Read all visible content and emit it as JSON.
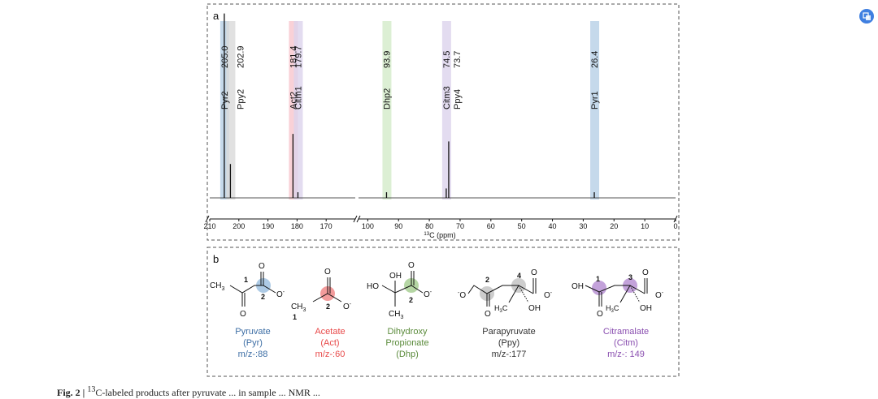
{
  "chart_data": {
    "type": "line",
    "panel_a_label": "a",
    "panel_b_label": "b",
    "xlabel_sup": "13",
    "xlabel": "C (ppm)",
    "x_segments": [
      {
        "xlim": [
          210,
          160
        ],
        "ticks": [
          210,
          200,
          190,
          180,
          170
        ]
      },
      {
        "xlim": [
          103,
          0
        ],
        "ticks": [
          100,
          90,
          80,
          70,
          60,
          50,
          40,
          30,
          20,
          10,
          0
        ]
      }
    ],
    "highlight_colors": {
      "Pyr": "#b7d0e6",
      "Ppy": "#d9d9d9",
      "Act": "#f8c6cd",
      "Citm": "#dcd3ec",
      "Dhp": "#d3ebc9"
    },
    "peaks": [
      {
        "label": "Pyr2",
        "ppm": 205.0,
        "value_label": "205.0",
        "height": 0.98,
        "band": "Pyr"
      },
      {
        "label": "Ppy2",
        "ppm": 202.9,
        "value_label": "202.9",
        "height": 0.18,
        "band": "Ppy"
      },
      {
        "label": "Act2",
        "ppm": 181.4,
        "value_label": "181.4",
        "height": 0.34,
        "band": "Act"
      },
      {
        "label": "Citm1",
        "ppm": 179.7,
        "value_label": "179.7",
        "height": 0.03,
        "band": "Citm"
      },
      {
        "label": "Dhp2",
        "ppm": 93.9,
        "value_label": "93.9",
        "height": 0.03,
        "band": "Dhp"
      },
      {
        "label": "Citm3",
        "ppm": 74.5,
        "value_label": "74.5",
        "height": 0.05,
        "band": "Citm"
      },
      {
        "label": "Ppy4",
        "ppm": 73.7,
        "value_label": "73.7",
        "height": 0.3,
        "band": "Citm"
      },
      {
        "label": "Pyr1",
        "ppm": 26.4,
        "value_label": "26.4",
        "height": 0.03,
        "band": "Pyr"
      }
    ]
  },
  "structures": {
    "pyruvate": {
      "ch3": "CH",
      "ch3_sub": "3",
      "o_top": "O",
      "o_bottom": "O",
      "o_minus": "O",
      "c1": "1",
      "c2": "2",
      "name": "Pyruvate",
      "abbr": "(Pyr)",
      "mz": "m/z-:88",
      "color": "#3d6ea5"
    },
    "acetate": {
      "ch3": "CH",
      "ch3_sub": "3",
      "o_top": "O",
      "o_minus": "O",
      "c1": "1",
      "c2": "2",
      "name": "Acetate",
      "abbr": "(Act)",
      "mz": "m/z-:60",
      "color": "#e84a4a"
    },
    "dhp": {
      "ho": "HO",
      "oh": "OH",
      "o_top": "O",
      "o_minus": "O",
      "ch3": "CH",
      "ch3_sub": "3",
      "c2": "2",
      "name": "Dihydroxy",
      "name2": "Propionate",
      "abbr": "(Dhp)",
      "color": "#5a8a3a"
    },
    "ppy": {
      "o_left": "O",
      "o_bottom": "O",
      "o_top": "O",
      "o_minus": "O",
      "h3c": "H",
      "h3c_sub": "3",
      "h3c_c": "C",
      "oh": "OH",
      "c2": "2",
      "c4": "4",
      "name": "Parapyruvate",
      "abbr": "(Ppy)",
      "mz": "m/z-:177",
      "color": "#333333"
    },
    "citm": {
      "oh_left": "OH",
      "o_bottom": "O",
      "o_top": "O",
      "o_minus": "O",
      "h3c": "H",
      "h3c_sub": "3",
      "h3c_c": "C",
      "oh": "OH",
      "c1": "1",
      "c3": "3",
      "name": "Citramalate",
      "abbr": "(Citm)",
      "mz": "m/z-: 149",
      "color": "#8a4fb0"
    }
  },
  "caption": "Fig. 2 | ",
  "caption_sup": "13",
  "caption_rest": "C-labeled products after pyruvate ... in sample ... NMR ... "
}
